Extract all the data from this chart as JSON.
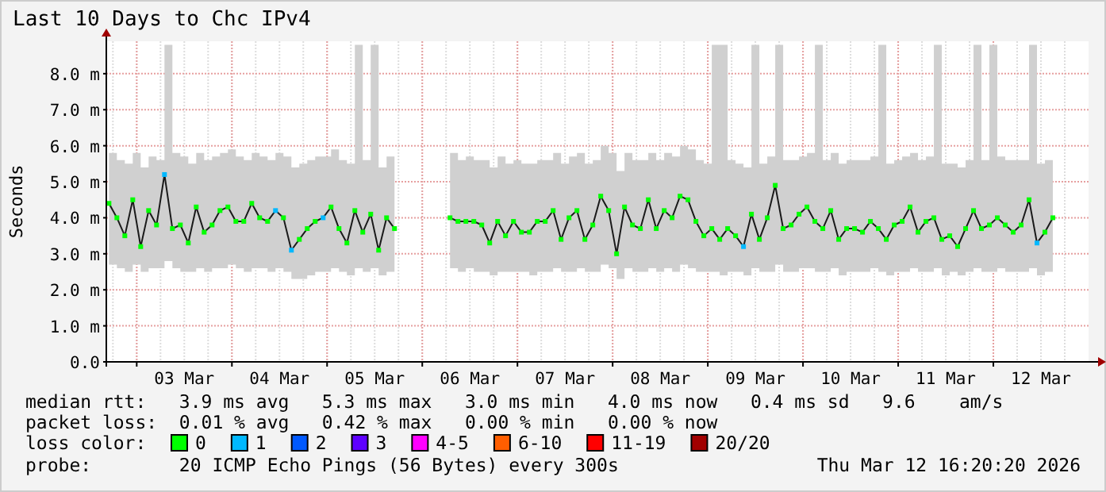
{
  "chart_data": {
    "type": "line",
    "title": "Last 10 Days to Chc IPv4",
    "ylabel": "Seconds",
    "xlim": [
      "2026-03-02T16:20",
      "2026-03-13T00:00"
    ],
    "xticks": [
      {
        "value": "2026-03-03T12:00",
        "label": "03 Mar"
      },
      {
        "value": "2026-03-04T12:00",
        "label": "04 Mar"
      },
      {
        "value": "2026-03-05T12:00",
        "label": "05 Mar"
      },
      {
        "value": "2026-03-06T12:00",
        "label": "06 Mar"
      },
      {
        "value": "2026-03-07T12:00",
        "label": "07 Mar"
      },
      {
        "value": "2026-03-08T12:00",
        "label": "08 Mar"
      },
      {
        "value": "2026-03-09T12:00",
        "label": "09 Mar"
      },
      {
        "value": "2026-03-10T12:00",
        "label": "10 Mar"
      },
      {
        "value": "2026-03-11T12:00",
        "label": "11 Mar"
      },
      {
        "value": "2026-03-12T12:00",
        "label": "12 Mar"
      }
    ],
    "ylim": [
      0,
      8.9
    ],
    "yticks": [
      {
        "value": 0,
        "label": "0.0"
      },
      {
        "value": 1,
        "label": "1.0 m"
      },
      {
        "value": 2,
        "label": "2.0 m"
      },
      {
        "value": 3,
        "label": "3.0 m"
      },
      {
        "value": 4,
        "label": "4.0 m"
      },
      {
        "value": 5,
        "label": "5.0 m"
      },
      {
        "value": 6,
        "label": "6.0 m"
      },
      {
        "value": 7,
        "label": "7.0 m"
      },
      {
        "value": 8,
        "label": "8.0 m"
      }
    ],
    "grid": true,
    "marker": "square",
    "line_style": "solid",
    "x": [
      "2026-03-02T17:00",
      "2026-03-02T19:00",
      "2026-03-02T21:00",
      "2026-03-02T23:00",
      "2026-03-03T01:00",
      "2026-03-03T03:00",
      "2026-03-03T05:00",
      "2026-03-03T07:00",
      "2026-03-03T09:00",
      "2026-03-03T11:00",
      "2026-03-03T13:00",
      "2026-03-03T15:00",
      "2026-03-03T17:00",
      "2026-03-03T19:00",
      "2026-03-03T21:00",
      "2026-03-03T23:00",
      "2026-03-04T01:00",
      "2026-03-04T03:00",
      "2026-03-04T05:00",
      "2026-03-04T07:00",
      "2026-03-04T09:00",
      "2026-03-04T11:00",
      "2026-03-04T13:00",
      "2026-03-04T15:00",
      "2026-03-04T17:00",
      "2026-03-04T19:00",
      "2026-03-04T21:00",
      "2026-03-04T23:00",
      "2026-03-05T01:00",
      "2026-03-05T03:00",
      "2026-03-05T05:00",
      "2026-03-05T07:00",
      "2026-03-05T09:00",
      "2026-03-05T11:00",
      "2026-03-05T13:00",
      "2026-03-05T15:00",
      "2026-03-05T17:00",
      "2026-03-06T00:00",
      "2026-03-06T07:00",
      "2026-03-06T09:00",
      "2026-03-06T11:00",
      "2026-03-06T13:00",
      "2026-03-06T15:00",
      "2026-03-06T17:00",
      "2026-03-06T19:00",
      "2026-03-06T21:00",
      "2026-03-06T23:00",
      "2026-03-07T01:00",
      "2026-03-07T03:00",
      "2026-03-07T05:00",
      "2026-03-07T07:00",
      "2026-03-07T09:00",
      "2026-03-07T11:00",
      "2026-03-07T13:00",
      "2026-03-07T15:00",
      "2026-03-07T17:00",
      "2026-03-07T19:00",
      "2026-03-07T21:00",
      "2026-03-07T23:00",
      "2026-03-08T01:00",
      "2026-03-08T03:00",
      "2026-03-08T05:00",
      "2026-03-08T07:00",
      "2026-03-08T09:00",
      "2026-03-08T11:00",
      "2026-03-08T13:00",
      "2026-03-08T15:00",
      "2026-03-08T17:00",
      "2026-03-08T19:00",
      "2026-03-08T21:00",
      "2026-03-08T23:00",
      "2026-03-09T01:00",
      "2026-03-09T03:00",
      "2026-03-09T05:00",
      "2026-03-09T07:00",
      "2026-03-09T09:00",
      "2026-03-09T11:00",
      "2026-03-09T13:00",
      "2026-03-09T15:00",
      "2026-03-09T17:00",
      "2026-03-09T19:00",
      "2026-03-09T21:00",
      "2026-03-09T23:00",
      "2026-03-10T01:00",
      "2026-03-10T03:00",
      "2026-03-10T05:00",
      "2026-03-10T07:00",
      "2026-03-10T09:00",
      "2026-03-10T11:00",
      "2026-03-10T13:00",
      "2026-03-10T15:00",
      "2026-03-10T17:00",
      "2026-03-10T19:00",
      "2026-03-10T21:00",
      "2026-03-10T23:00",
      "2026-03-11T01:00",
      "2026-03-11T03:00",
      "2026-03-11T05:00",
      "2026-03-11T07:00",
      "2026-03-11T09:00",
      "2026-03-11T11:00",
      "2026-03-11T13:00",
      "2026-03-11T15:00",
      "2026-03-11T17:00",
      "2026-03-11T19:00",
      "2026-03-11T21:00",
      "2026-03-11T23:00",
      "2026-03-12T01:00",
      "2026-03-12T03:00",
      "2026-03-12T05:00",
      "2026-03-12T07:00",
      "2026-03-12T09:00",
      "2026-03-12T11:00",
      "2026-03-12T13:00",
      "2026-03-12T15:00"
    ],
    "series": [
      {
        "color": "#1a1a1a",
        "values": [
          4.4,
          4.0,
          3.5,
          4.5,
          3.2,
          4.2,
          3.8,
          5.2,
          3.7,
          3.8,
          3.3,
          4.3,
          3.6,
          3.8,
          4.2,
          4.3,
          3.9,
          3.9,
          4.4,
          4.0,
          3.9,
          4.2,
          4.0,
          3.1,
          3.4,
          3.7,
          3.9,
          4.0,
          4.3,
          3.7,
          3.3,
          4.2,
          3.6,
          4.1,
          3.1,
          4.0,
          3.7,
          null,
          4.0,
          3.9,
          3.9,
          3.9,
          3.8,
          3.3,
          3.9,
          3.5,
          3.9,
          3.6,
          3.6,
          3.9,
          3.9,
          4.2,
          3.4,
          4.0,
          4.2,
          3.4,
          3.8,
          4.6,
          4.2,
          3.0,
          4.3,
          3.8,
          3.7,
          4.5,
          3.7,
          4.2,
          4.0,
          4.6,
          4.5,
          3.9,
          3.5,
          3.7,
          3.4,
          3.7,
          3.5,
          3.2,
          4.1,
          3.4,
          4.0,
          4.9,
          3.7,
          3.8,
          4.1,
          4.3,
          3.9,
          3.7,
          4.2,
          3.4,
          3.7,
          3.7,
          3.6,
          3.9,
          3.7,
          3.4,
          3.8,
          3.9,
          4.3,
          3.6,
          3.9,
          4.0,
          3.4,
          3.5,
          3.2,
          3.7,
          4.2,
          3.7,
          3.8,
          4.0,
          3.8,
          3.6,
          3.8,
          4.5,
          3.3,
          3.6,
          4.0
        ],
        "lower": [
          2.7,
          2.6,
          2.5,
          2.7,
          2.5,
          2.6,
          2.6,
          2.8,
          2.6,
          2.5,
          2.5,
          2.6,
          2.5,
          2.6,
          2.6,
          2.7,
          2.6,
          2.5,
          2.6,
          2.6,
          2.5,
          2.6,
          2.5,
          2.3,
          2.3,
          2.4,
          2.5,
          2.5,
          2.6,
          2.5,
          2.4,
          2.6,
          2.5,
          2.6,
          2.4,
          2.5,
          2.5,
          null,
          2.6,
          2.5,
          2.6,
          2.5,
          2.5,
          2.4,
          2.5,
          2.5,
          2.5,
          2.5,
          2.4,
          2.5,
          2.5,
          2.6,
          2.5,
          2.5,
          2.6,
          2.5,
          2.5,
          2.7,
          2.6,
          2.3,
          2.6,
          2.5,
          2.5,
          2.6,
          2.5,
          2.6,
          2.5,
          2.7,
          2.6,
          2.5,
          2.5,
          2.5,
          2.4,
          2.5,
          2.5,
          2.4,
          2.6,
          2.5,
          2.5,
          2.7,
          2.5,
          2.5,
          2.6,
          2.6,
          2.5,
          2.5,
          2.6,
          2.4,
          2.5,
          2.5,
          2.5,
          2.6,
          2.5,
          2.4,
          2.5,
          2.5,
          2.6,
          2.5,
          2.5,
          2.6,
          2.4,
          2.5,
          2.4,
          2.5,
          2.6,
          2.5,
          2.5,
          2.6,
          2.5,
          2.5,
          2.5,
          2.6,
          2.4,
          2.5,
          2.6
        ],
        "upper": [
          5.8,
          5.6,
          5.5,
          5.8,
          5.4,
          5.7,
          5.6,
          8.8,
          5.8,
          5.7,
          5.5,
          5.8,
          5.6,
          5.7,
          5.8,
          5.9,
          5.7,
          5.6,
          5.8,
          5.7,
          5.6,
          5.8,
          5.7,
          5.4,
          5.5,
          5.6,
          5.7,
          5.7,
          5.9,
          5.6,
          5.5,
          8.8,
          5.6,
          8.8,
          5.4,
          5.7,
          5.6,
          null,
          5.8,
          5.6,
          5.7,
          5.6,
          5.6,
          5.4,
          5.7,
          5.5,
          5.6,
          5.5,
          5.5,
          5.6,
          5.6,
          5.8,
          5.5,
          5.7,
          5.8,
          5.5,
          5.6,
          6.0,
          5.8,
          5.3,
          5.8,
          5.6,
          5.6,
          5.8,
          5.6,
          5.8,
          5.7,
          6.0,
          5.9,
          5.6,
          5.5,
          8.8,
          8.8,
          5.6,
          5.5,
          5.4,
          8.8,
          5.5,
          5.7,
          8.8,
          5.6,
          5.6,
          5.7,
          5.8,
          8.8,
          5.6,
          5.8,
          5.5,
          5.6,
          5.6,
          5.6,
          5.7,
          8.8,
          5.5,
          5.6,
          5.7,
          5.8,
          5.6,
          5.7,
          8.8,
          5.5,
          5.5,
          5.4,
          5.6,
          8.8,
          5.6,
          8.8,
          5.7,
          5.6,
          5.6,
          5.6,
          8.8,
          5.5,
          5.6,
          5.7
        ],
        "colors": [
          "#00ff00",
          "#00ff00",
          "#00ff00",
          "#00ff00",
          "#00ff00",
          "#00ff00",
          "#00ff00",
          "#00b8ff",
          "#00ff00",
          "#00ff00",
          "#00ff00",
          "#00ff00",
          "#00ff00",
          "#00ff00",
          "#00ff00",
          "#00ff00",
          "#00ff00",
          "#00ff00",
          "#00ff00",
          "#00ff00",
          "#00ff00",
          "#00b8ff",
          "#00ff00",
          "#00b8ff",
          "#00ff00",
          "#00ff00",
          "#00ff00",
          "#00b8ff",
          "#00ff00",
          "#00ff00",
          "#00ff00",
          "#00ff00",
          "#00ff00",
          "#00ff00",
          "#00ff00",
          "#00ff00",
          "#00ff00",
          null,
          "#00ff00",
          "#00ff00",
          "#00ff00",
          "#00ff00",
          "#00ff00",
          "#00ff00",
          "#00ff00",
          "#00ff00",
          "#00ff00",
          "#00ff00",
          "#00ff00",
          "#00ff00",
          "#00ff00",
          "#00ff00",
          "#00ff00",
          "#00ff00",
          "#00ff00",
          "#00ff00",
          "#00ff00",
          "#00ff00",
          "#00ff00",
          "#00ff00",
          "#00ff00",
          "#00ff00",
          "#00ff00",
          "#00ff00",
          "#00ff00",
          "#00ff00",
          "#00ff00",
          "#00ff00",
          "#00ff00",
          "#00ff00",
          "#00ff00",
          "#00ff00",
          "#00ff00",
          "#00ff00",
          "#00ff00",
          "#00b8ff",
          "#00ff00",
          "#00ff00",
          "#00ff00",
          "#00ff00",
          "#00ff00",
          "#00ff00",
          "#00ff00",
          "#00ff00",
          "#00ff00",
          "#00ff00",
          "#00ff00",
          "#00ff00",
          "#00ff00",
          "#00ff00",
          "#00ff00",
          "#00ff00",
          "#00ff00",
          "#00ff00",
          "#00ff00",
          "#00ff00",
          "#00ff00",
          "#00ff00",
          "#00ff00",
          "#00ff00",
          "#00ff00",
          "#00ff00",
          "#00ff00",
          "#00ff00",
          "#00ff00",
          "#00ff00",
          "#00ff00",
          "#00ff00",
          "#00ff00",
          "#00ff00",
          "#00ff00",
          "#00ff00",
          "#00b8ff",
          "#00ff00",
          "#00ff00"
        ]
      }
    ],
    "annotations": [
      "median rtt:   3.9 ms avg   5.3 ms max   3.0 ms min   4.0 ms now   0.4 ms sd   9.6    am/s",
      "packet loss:  0.01 % avg   0.42 % max   0.00 % min   0.00 % now",
      "loss color:",
      "0",
      "1",
      "2",
      "3",
      "4-5",
      "6-10",
      "11-19",
      "20/20",
      "probe:        20 ICMP Echo Pings (56 Bytes) every 300s",
      "Thu Mar 12 16:20:20 2026"
    ]
  }
}
